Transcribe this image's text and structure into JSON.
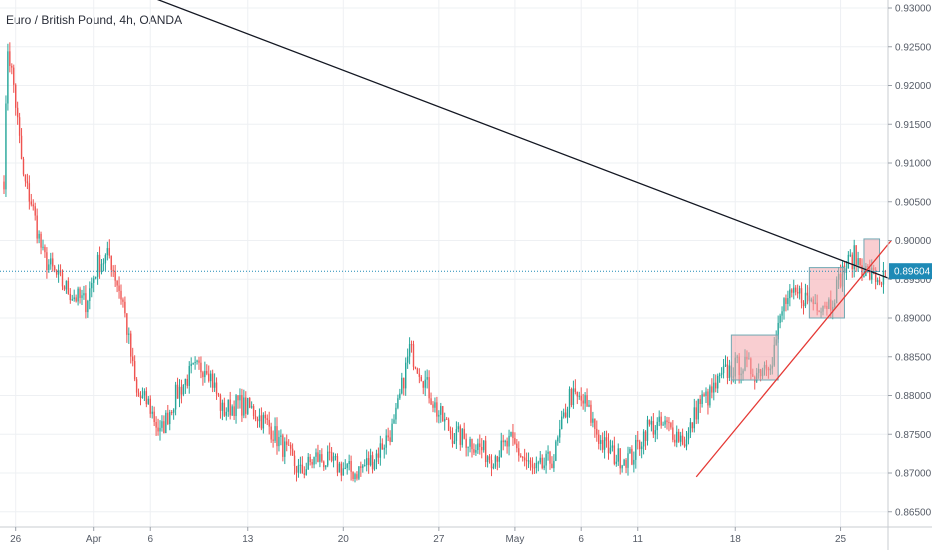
{
  "chart_data": {
    "type": "candlestick",
    "title": "Euro / British Pound, 4h, OANDA",
    "x_tick_labels": [
      "26",
      "Apr",
      "6",
      "13",
      "20",
      "27",
      "May",
      "6",
      "11",
      "18",
      "25"
    ],
    "y_tick_labels": [
      "0.93000",
      "0.92500",
      "0.92000",
      "0.91500",
      "0.91000",
      "0.90500",
      "0.90000",
      "0.89500",
      "0.89000",
      "0.88500",
      "0.88000",
      "0.87500",
      "0.87000",
      "0.86500"
    ],
    "ylim": [
      0.864,
      0.9305
    ],
    "current_price": 0.89604,
    "current_price_label": "0.89604",
    "anchors": [
      [
        0,
        0.908
      ],
      [
        2,
        0.925
      ],
      [
        5,
        0.92
      ],
      [
        10,
        0.908
      ],
      [
        14,
        0.905
      ],
      [
        20,
        0.898
      ],
      [
        28,
        0.895
      ],
      [
        35,
        0.893
      ],
      [
        42,
        0.892
      ],
      [
        48,
        0.897
      ],
      [
        54,
        0.898
      ],
      [
        61,
        0.892
      ],
      [
        68,
        0.88
      ],
      [
        74,
        0.879
      ],
      [
        80,
        0.875
      ],
      [
        88,
        0.88
      ],
      [
        96,
        0.883
      ],
      [
        104,
        0.884
      ],
      [
        112,
        0.878
      ],
      [
        120,
        0.879
      ],
      [
        128,
        0.878
      ],
      [
        136,
        0.876
      ],
      [
        144,
        0.873
      ],
      [
        152,
        0.87
      ],
      [
        160,
        0.872
      ],
      [
        170,
        0.871
      ],
      [
        180,
        0.87
      ],
      [
        190,
        0.872
      ],
      [
        200,
        0.876
      ],
      [
        208,
        0.886
      ],
      [
        214,
        0.883
      ],
      [
        222,
        0.878
      ],
      [
        230,
        0.875
      ],
      [
        240,
        0.874
      ],
      [
        250,
        0.872
      ],
      [
        260,
        0.874
      ],
      [
        272,
        0.87
      ],
      [
        282,
        0.872
      ],
      [
        290,
        0.88
      ],
      [
        298,
        0.879
      ],
      [
        306,
        0.874
      ],
      [
        314,
        0.872
      ],
      [
        322,
        0.872
      ],
      [
        330,
        0.876
      ],
      [
        340,
        0.876
      ],
      [
        350,
        0.874
      ],
      [
        356,
        0.879
      ],
      [
        362,
        0.88
      ],
      [
        370,
        0.883
      ],
      [
        378,
        0.884
      ],
      [
        386,
        0.883
      ],
      [
        394,
        0.885
      ],
      [
        400,
        0.892
      ],
      [
        408,
        0.893
      ],
      [
        416,
        0.892
      ],
      [
        424,
        0.892
      ],
      [
        430,
        0.896
      ],
      [
        436,
        0.898
      ],
      [
        442,
        0.896
      ],
      [
        448,
        0.895
      ],
      [
        452,
        0.895
      ]
    ],
    "trendline_black": [
      [
        0.935,
        38
      ],
      [
        0.895,
        455
      ]
    ],
    "trendline_red": [
      [
        0.8695,
        355
      ],
      [
        0.9,
        455
      ]
    ],
    "boxes": [
      {
        "start": 373,
        "end": 397,
        "low": 0.882,
        "high": 0.8878
      },
      {
        "start": 413,
        "end": 431,
        "low": 0.89,
        "high": 0.8965
      },
      {
        "start": 441,
        "end": 449,
        "low": 0.896,
        "high": 0.9002
      }
    ],
    "colors": {
      "up": "#26a69a",
      "down": "#ef5350",
      "grid": "#eef0f3",
      "trend_black": "#131722",
      "trend_red": "#e53935",
      "current_price_line": "#1e8ab6",
      "current_price_badge": "#1e8ab6",
      "box_fill": "#f4a6ab",
      "box_stroke": "#6fa8b3"
    }
  }
}
